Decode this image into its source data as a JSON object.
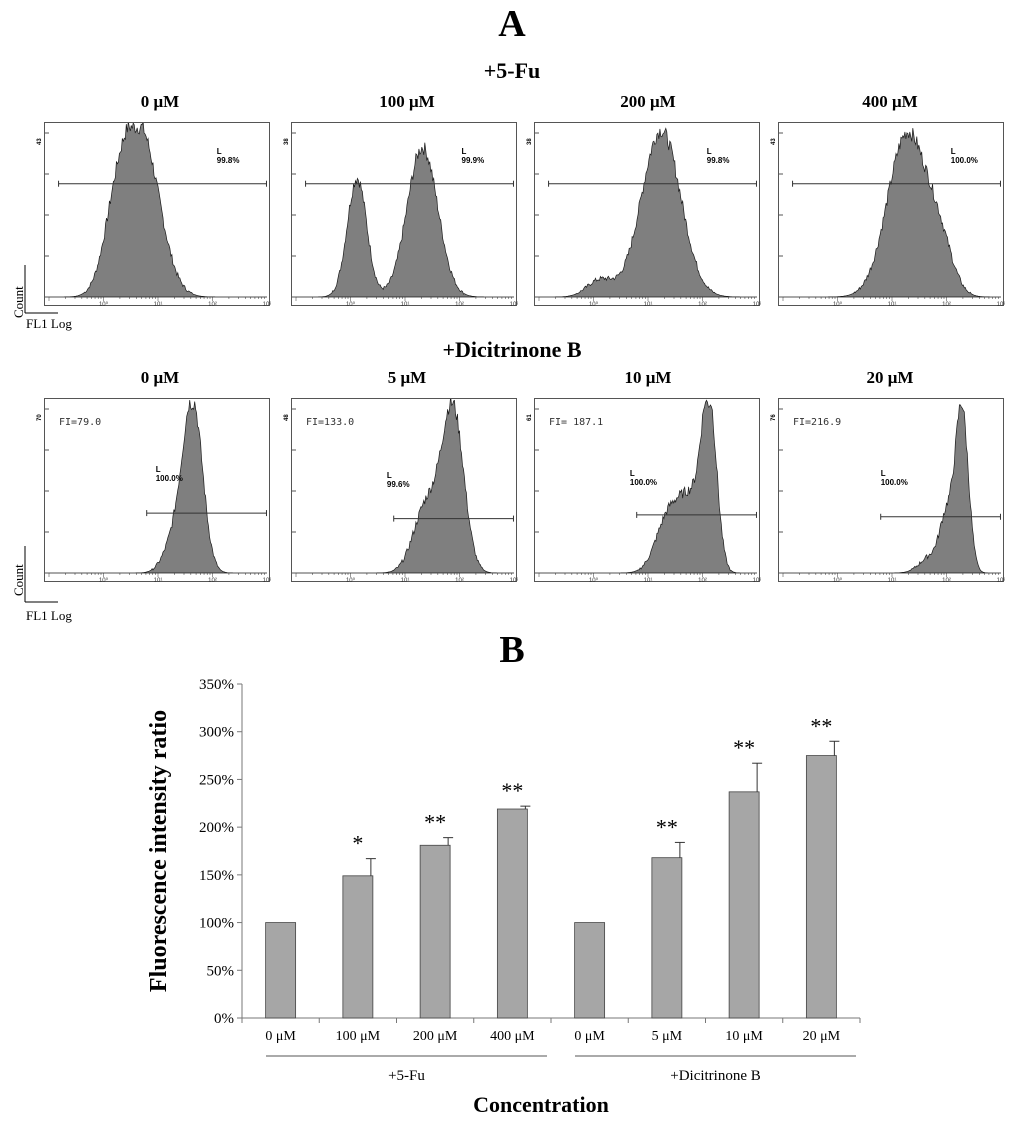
{
  "panel_a": {
    "label": "A",
    "axis_x_note": "FL1 Log",
    "axis_y_note": "Count",
    "groups": [
      {
        "title": "+5-Fu",
        "panels": [
          {
            "title": "0 μM",
            "ymax_label": "43",
            "gate_name": "L",
            "gate_pct": "99.8%",
            "fi": ""
          },
          {
            "title": "100 μM",
            "ymax_label": "38",
            "gate_name": "L",
            "gate_pct": "99.9%",
            "fi": ""
          },
          {
            "title": "200 μM",
            "ymax_label": "38",
            "gate_name": "L",
            "gate_pct": "99.8%",
            "fi": ""
          },
          {
            "title": "400 μM",
            "ymax_label": "43",
            "gate_name": "L",
            "gate_pct": "100.0%",
            "fi": ""
          }
        ]
      },
      {
        "title": "+Dicitrinone B",
        "panels": [
          {
            "title": "0 μM",
            "ymax_label": "70",
            "gate_name": "L",
            "gate_pct": "100.0%",
            "fi": "FI=79.0"
          },
          {
            "title": "5 μM",
            "ymax_label": "48",
            "gate_name": "L",
            "gate_pct": "99.6%",
            "fi": "FI=133.0"
          },
          {
            "title": "10 μM",
            "ymax_label": "61",
            "gate_name": "L",
            "gate_pct": "100.0%",
            "fi": "FI= 187.1"
          },
          {
            "title": "20 μM",
            "ymax_label": "76",
            "gate_name": "L",
            "gate_pct": "100.0%",
            "fi": "FI=216.9"
          }
        ]
      }
    ],
    "x_tick_labels": [
      "10⁰",
      "10¹",
      "10²",
      "10³"
    ]
  },
  "panel_b": {
    "label": "B"
  },
  "chart_data": {
    "type": "bar",
    "xlabel": "Concentration",
    "ylabel": "Fluorescence intensity ratio",
    "ylim": [
      0,
      350
    ],
    "y_unit": "%",
    "y_ticks": [
      0,
      50,
      100,
      150,
      200,
      250,
      300,
      350
    ],
    "y_tick_labels": [
      "0%",
      "50%",
      "100%",
      "150%",
      "200%",
      "250%",
      "300%",
      "350%"
    ],
    "categories": [
      "0 μM",
      "100 μM",
      "200 μM",
      "400 μM",
      "0 μM",
      "5 μM",
      "10 μM",
      "20 μM"
    ],
    "groups": [
      {
        "name": "+5-Fu",
        "indices": [
          0,
          1,
          2,
          3
        ]
      },
      {
        "name": "+Dicitrinone B",
        "indices": [
          4,
          5,
          6,
          7
        ]
      }
    ],
    "values": [
      100,
      149,
      181,
      219,
      100,
      168,
      237,
      275
    ],
    "errors": [
      0,
      18,
      8,
      3,
      0,
      16,
      30,
      15
    ],
    "significance": [
      "",
      "*",
      "**",
      "**",
      "",
      "**",
      "**",
      "**"
    ],
    "bar_color": "#a6a6a6",
    "grid": false
  }
}
